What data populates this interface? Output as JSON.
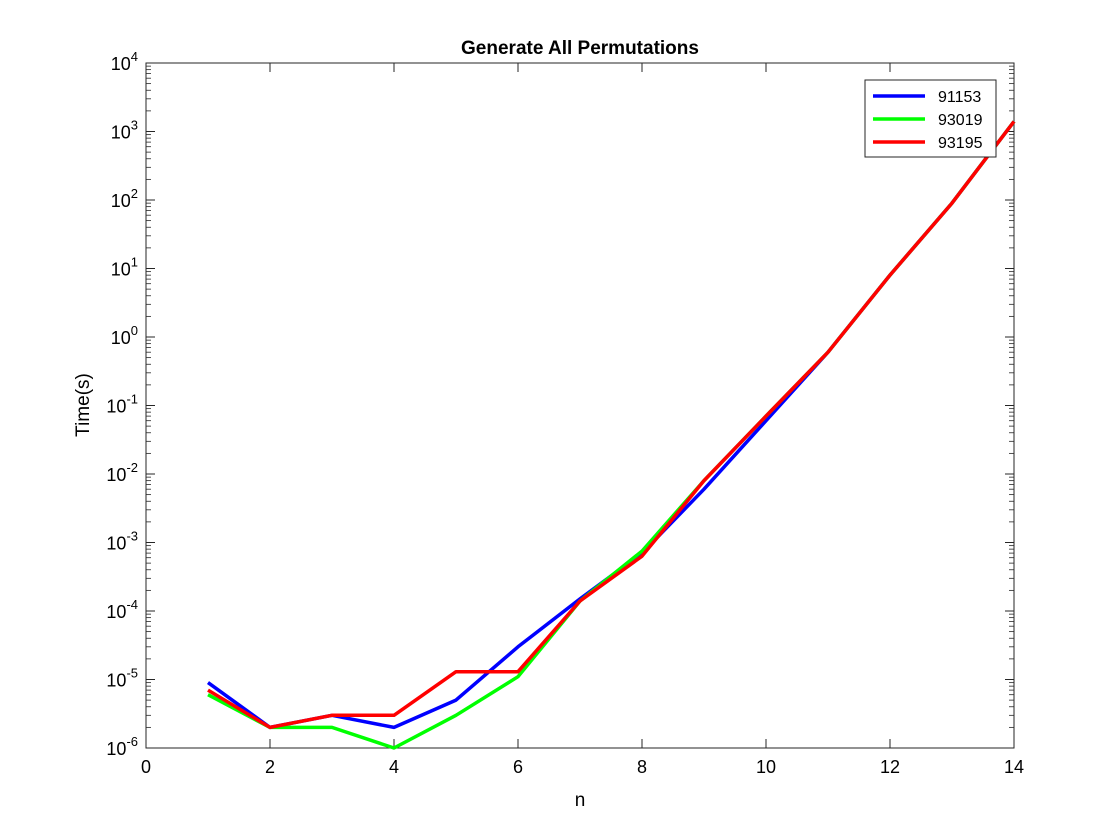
{
  "chart_data": {
    "type": "line",
    "title": "Generate All Permutations",
    "xlabel": "n",
    "ylabel": "Time(s)",
    "xlim": [
      0,
      14
    ],
    "ylim": [
      1e-06,
      10000
    ],
    "yscale": "log",
    "grid": false,
    "legend_position": "top-right",
    "xticks": [
      0,
      2,
      4,
      6,
      8,
      10,
      12,
      14
    ],
    "yticks": [
      {
        "base": "10",
        "exp": "-6"
      },
      {
        "base": "10",
        "exp": "-5"
      },
      {
        "base": "10",
        "exp": "-4"
      },
      {
        "base": "10",
        "exp": "-3"
      },
      {
        "base": "10",
        "exp": "-2"
      },
      {
        "base": "10",
        "exp": "-1"
      },
      {
        "base": "10",
        "exp": "0"
      },
      {
        "base": "10",
        "exp": "1"
      },
      {
        "base": "10",
        "exp": "2"
      },
      {
        "base": "10",
        "exp": "3"
      },
      {
        "base": "10",
        "exp": "4"
      }
    ],
    "x": [
      1,
      2,
      3,
      4,
      5,
      6,
      7,
      8,
      9,
      10,
      11,
      12,
      13,
      14
    ],
    "series": [
      {
        "name": "91153",
        "color": "#0000ff",
        "values": [
          9e-06,
          2e-06,
          3e-06,
          2e-06,
          5e-06,
          3e-05,
          0.00015,
          0.0007,
          0.006,
          0.06,
          0.6,
          8,
          90,
          1400
        ]
      },
      {
        "name": "93019",
        "color": "#00ff00",
        "values": [
          6e-06,
          2e-06,
          2e-06,
          1e-06,
          3e-06,
          1.1e-05,
          0.00014,
          0.00075,
          0.008,
          0.07,
          0.6,
          8,
          90,
          1400
        ]
      },
      {
        "name": "93195",
        "color": "#ff0000",
        "values": [
          7e-06,
          2e-06,
          3e-06,
          3e-06,
          1.3e-05,
          1.3e-05,
          0.00014,
          0.00063,
          0.008,
          0.07,
          0.6,
          8,
          90,
          1400
        ]
      }
    ]
  }
}
